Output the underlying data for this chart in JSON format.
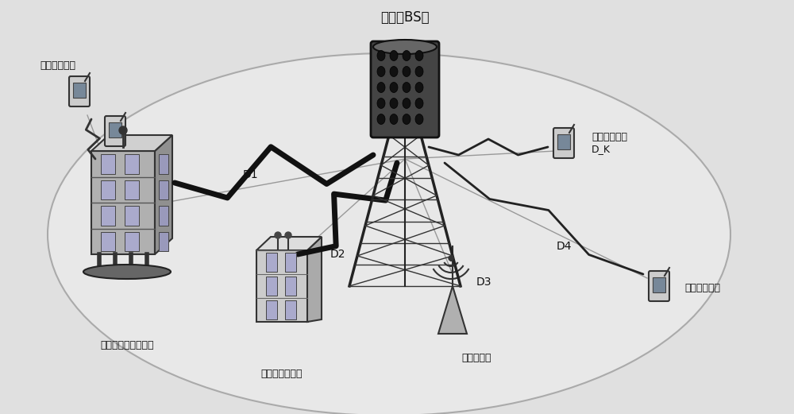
{
  "bg_color": "#e8e8e8",
  "ellipse_color": "#aaaaaa",
  "title_bs": "基站（BS）",
  "label_relay": "分布式中继天线阵列",
  "label_ant_array": "分布式天线阵列",
  "label_ant": "分布式天线",
  "label_mobile_top": "分布式移动台",
  "label_mobile_dk_1": "分布式移动台",
  "label_mobile_dk_2": "D_K",
  "label_mobile_br": "分布式移动台",
  "label_d1": "D1",
  "label_d2": "D2",
  "label_d3": "D3",
  "label_d4": "D4",
  "text_color": "#111111",
  "font_size": 9,
  "font_size_title": 12
}
